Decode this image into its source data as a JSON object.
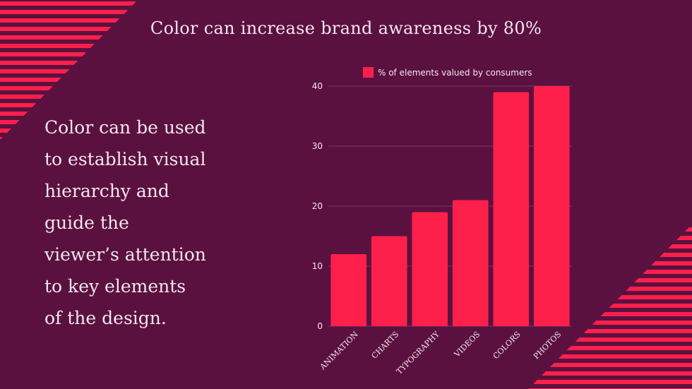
{
  "colors": {
    "background": "#5a1140",
    "accent": "#ff1f4b",
    "text": "#f6e6ee",
    "grid": "#7a3a62"
  },
  "title": "Color can increase brand awareness by 80%",
  "body_lines": [
    "Color can be used",
    "to establish visual",
    "hierarchy and",
    "guide the",
    "viewer’s attention",
    "to key  elements",
    "of the design."
  ],
  "chart_data": {
    "type": "bar",
    "title": "",
    "xlabel": "",
    "ylabel": "",
    "categories": [
      "ANIMATION",
      "CHARTS",
      "TYPOGRAPHY",
      "VIDEOS",
      "COLORS",
      "PHOTOS"
    ],
    "series": [
      {
        "name": "% of elements valued by consumers",
        "values": [
          12,
          15,
          19,
          21,
          39,
          40
        ]
      }
    ],
    "ylim": [
      0,
      40
    ],
    "yticks": [
      0,
      10,
      20,
      30,
      40
    ],
    "grid": true,
    "legend_position": "top"
  }
}
